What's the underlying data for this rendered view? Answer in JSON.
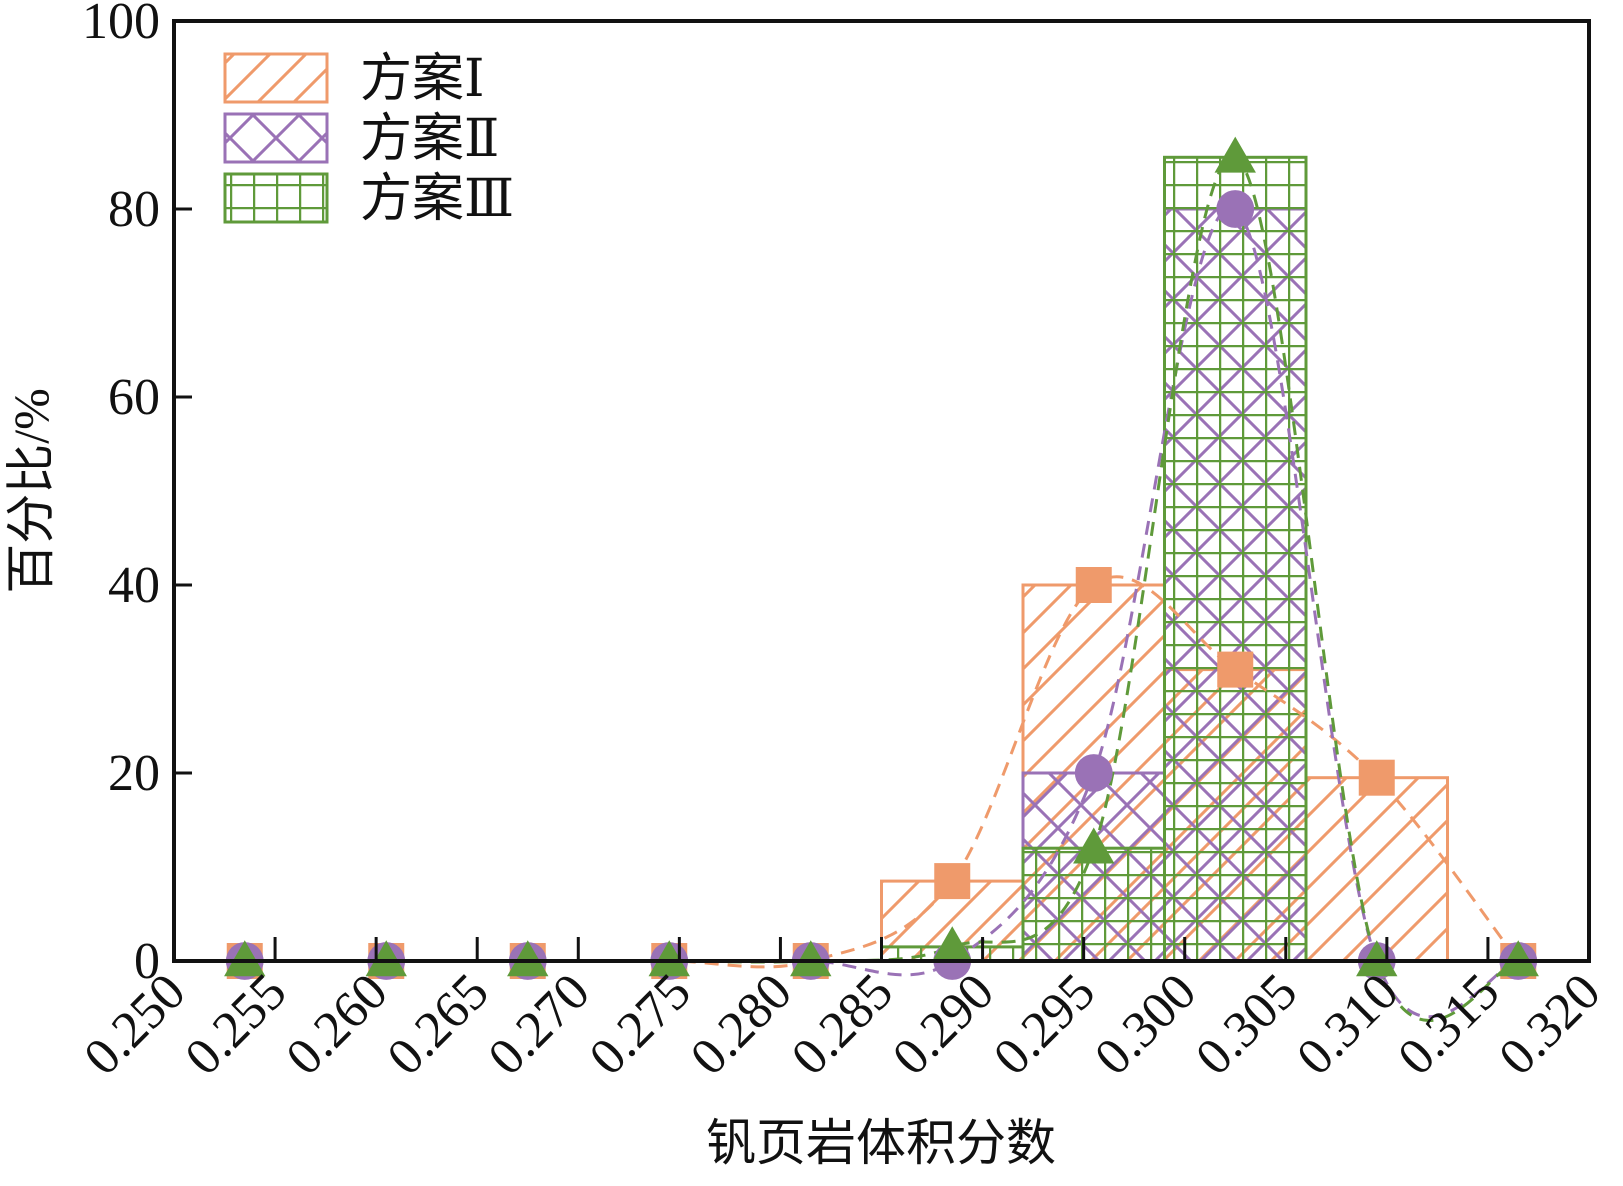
{
  "chart_data": {
    "type": "histogram",
    "xlabel": "钒页岩体积分数",
    "ylabel": "百分比/%",
    "bins": [
      0.25,
      0.257,
      0.264,
      0.271,
      0.278,
      0.285,
      0.292,
      0.299,
      0.306,
      0.313,
      0.32
    ],
    "series": [
      {
        "name": "方案Ⅰ",
        "color": "#ef9a6b",
        "hatch": "diagonal",
        "marker": "square",
        "values": [
          0,
          0,
          0,
          0,
          0,
          8.5,
          40,
          31,
          19.5,
          0
        ]
      },
      {
        "name": "方案Ⅱ",
        "color": "#9a72b6",
        "hatch": "cross",
        "marker": "circle",
        "values": [
          0,
          0,
          0,
          0,
          0,
          0,
          20,
          80,
          0,
          0
        ]
      },
      {
        "name": "方案Ⅲ",
        "color": "#5f9a3a",
        "hatch": "grid",
        "marker": "triangle",
        "values": [
          0,
          0,
          0,
          0,
          0,
          1.5,
          12,
          85.5,
          0,
          0
        ]
      }
    ],
    "xlim": [
      0.25,
      0.32
    ],
    "xticks": [
      {
        "value": 0.25,
        "label": "0.250"
      },
      {
        "value": 0.255,
        "label": "0.255"
      },
      {
        "value": 0.26,
        "label": "0.260"
      },
      {
        "value": 0.265,
        "label": "0.265"
      },
      {
        "value": 0.27,
        "label": "0.270"
      },
      {
        "value": 0.275,
        "label": "0.275"
      },
      {
        "value": 0.28,
        "label": "0.280"
      },
      {
        "value": 0.285,
        "label": "0.285"
      },
      {
        "value": 0.29,
        "label": "0.290"
      },
      {
        "value": 0.295,
        "label": "0.295"
      },
      {
        "value": 0.3,
        "label": "0.300"
      },
      {
        "value": 0.305,
        "label": "0.305"
      },
      {
        "value": 0.31,
        "label": "0.310"
      },
      {
        "value": 0.315,
        "label": "0.315"
      },
      {
        "value": 0.32,
        "label": "0.320"
      }
    ],
    "ylim": [
      0,
      100
    ],
    "yticks": [
      0,
      20,
      40,
      60,
      80,
      100
    ],
    "legend": "upper left"
  }
}
